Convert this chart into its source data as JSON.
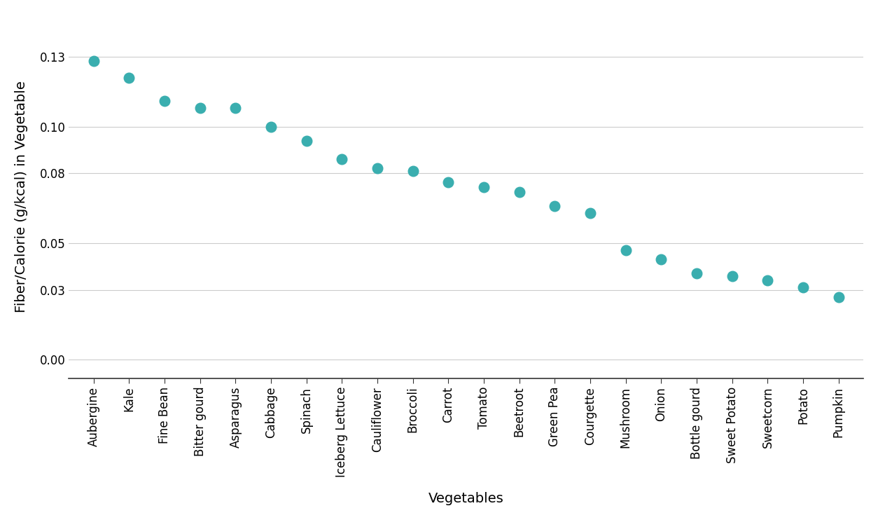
{
  "vegetables": [
    "Aubergine",
    "Kale",
    "Fine Bean",
    "Bitter gourd",
    "Asparagus",
    "Cabbage",
    "Spinach",
    "Iceberg Lettuce",
    "Cauliflower",
    "Broccoli",
    "Carrot",
    "Tomato",
    "Beetroot",
    "Green Pea",
    "Courgette",
    "Mushroom",
    "Onion",
    "Bottle gourd",
    "Sweet Potato",
    "Sweetcorn",
    "Potato",
    "Pumpkin"
  ],
  "values": [
    0.128,
    0.121,
    0.111,
    0.108,
    0.108,
    0.1,
    0.094,
    0.086,
    0.082,
    0.081,
    0.076,
    0.074,
    0.072,
    0.066,
    0.063,
    0.047,
    0.043,
    0.037,
    0.036,
    0.034,
    0.031,
    0.027
  ],
  "dot_color": "#3AAEAF",
  "dot_size": 110,
  "ylabel": "Fiber/Calorie (g/kcal) in Vegetable",
  "xlabel": "Vegetables",
  "yticks": [
    0.0,
    0.03,
    0.05,
    0.08,
    0.1,
    0.13
  ],
  "ylim": [
    -0.008,
    0.148
  ],
  "background_color": "#ffffff",
  "grid_color": "#cccccc",
  "label_fontsize": 14,
  "tick_fontsize": 12
}
